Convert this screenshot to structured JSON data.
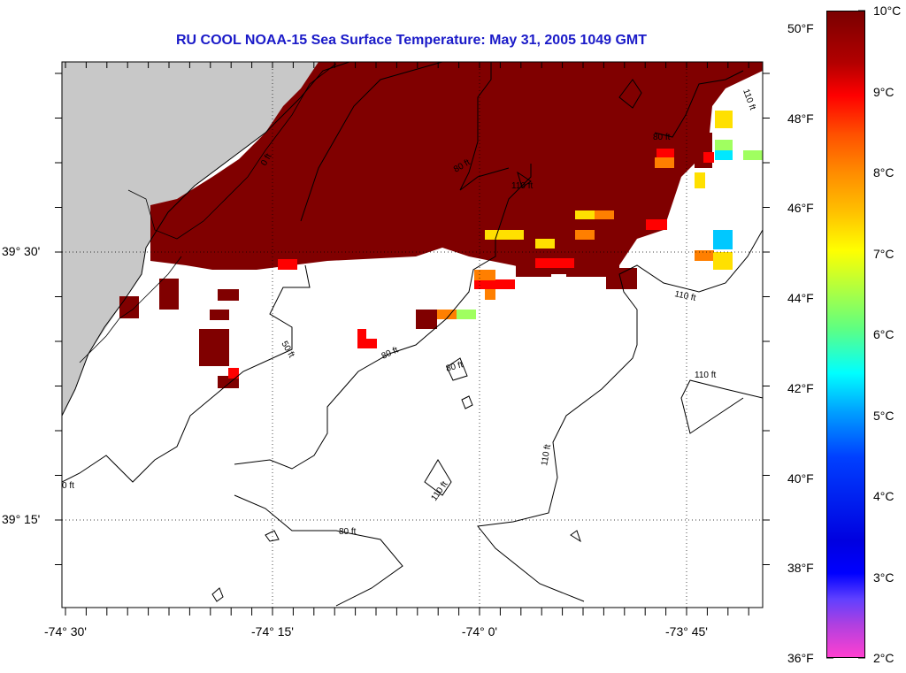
{
  "title": "RU COOL  NOAA-15  Sea Surface Temperature:  May 31, 2005 1049 GMT",
  "axes": {
    "lat_labels": [
      {
        "text": "39° 30'",
        "lat": 39.5
      },
      {
        "text": "39° 15'",
        "lat": 39.25
      }
    ],
    "lon_labels": [
      {
        "text": "-74° 30'",
        "lon": -74.5
      },
      {
        "text": "-74° 15'",
        "lon": -74.25
      },
      {
        "text": "-74° 0'",
        "lon": -74.0
      },
      {
        "text": "-73° 45'",
        "lon": -73.75
      }
    ]
  },
  "contour_labels": [
    "0 ft",
    "50 ft",
    "80 ft",
    "110 ft"
  ],
  "colorbar": {
    "fahrenheit_labels": [
      "50°F",
      "48°F",
      "46°F",
      "44°F",
      "42°F",
      "40°F",
      "38°F",
      "36°F"
    ],
    "celsius_labels": [
      "10°C",
      "9°C",
      "8°C",
      "7°C",
      "6°C",
      "5°C",
      "4°C",
      "3°C",
      "2°C"
    ]
  },
  "colors": {
    "sst_max": "#800000",
    "land": "#c8c8c8",
    "title": "#1a1ac8"
  }
}
